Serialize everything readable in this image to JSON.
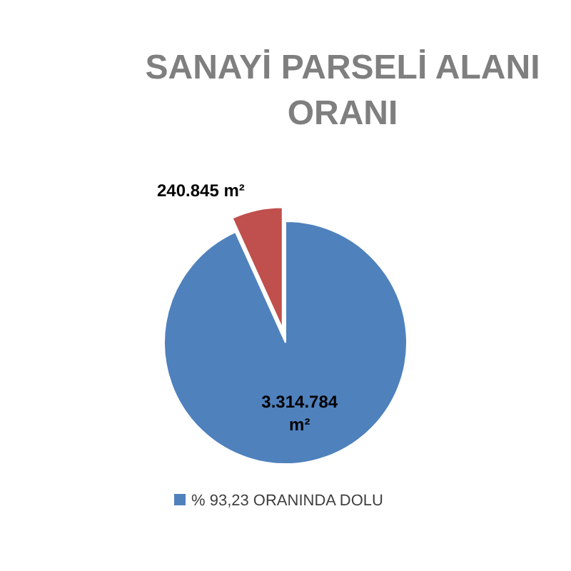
{
  "chart_data": {
    "type": "pie",
    "title": "SANAYİ PARSELİ ALANI ORANI",
    "categories": [
      "% 93,23 ORANINDA DOLU",
      null
    ],
    "values": [
      3314784,
      240845
    ],
    "value_labels": [
      "3.314.784 m²",
      "240.845 m²"
    ],
    "colors": [
      "#4f81bd",
      "#c0504d"
    ],
    "legend": "bottom"
  }
}
